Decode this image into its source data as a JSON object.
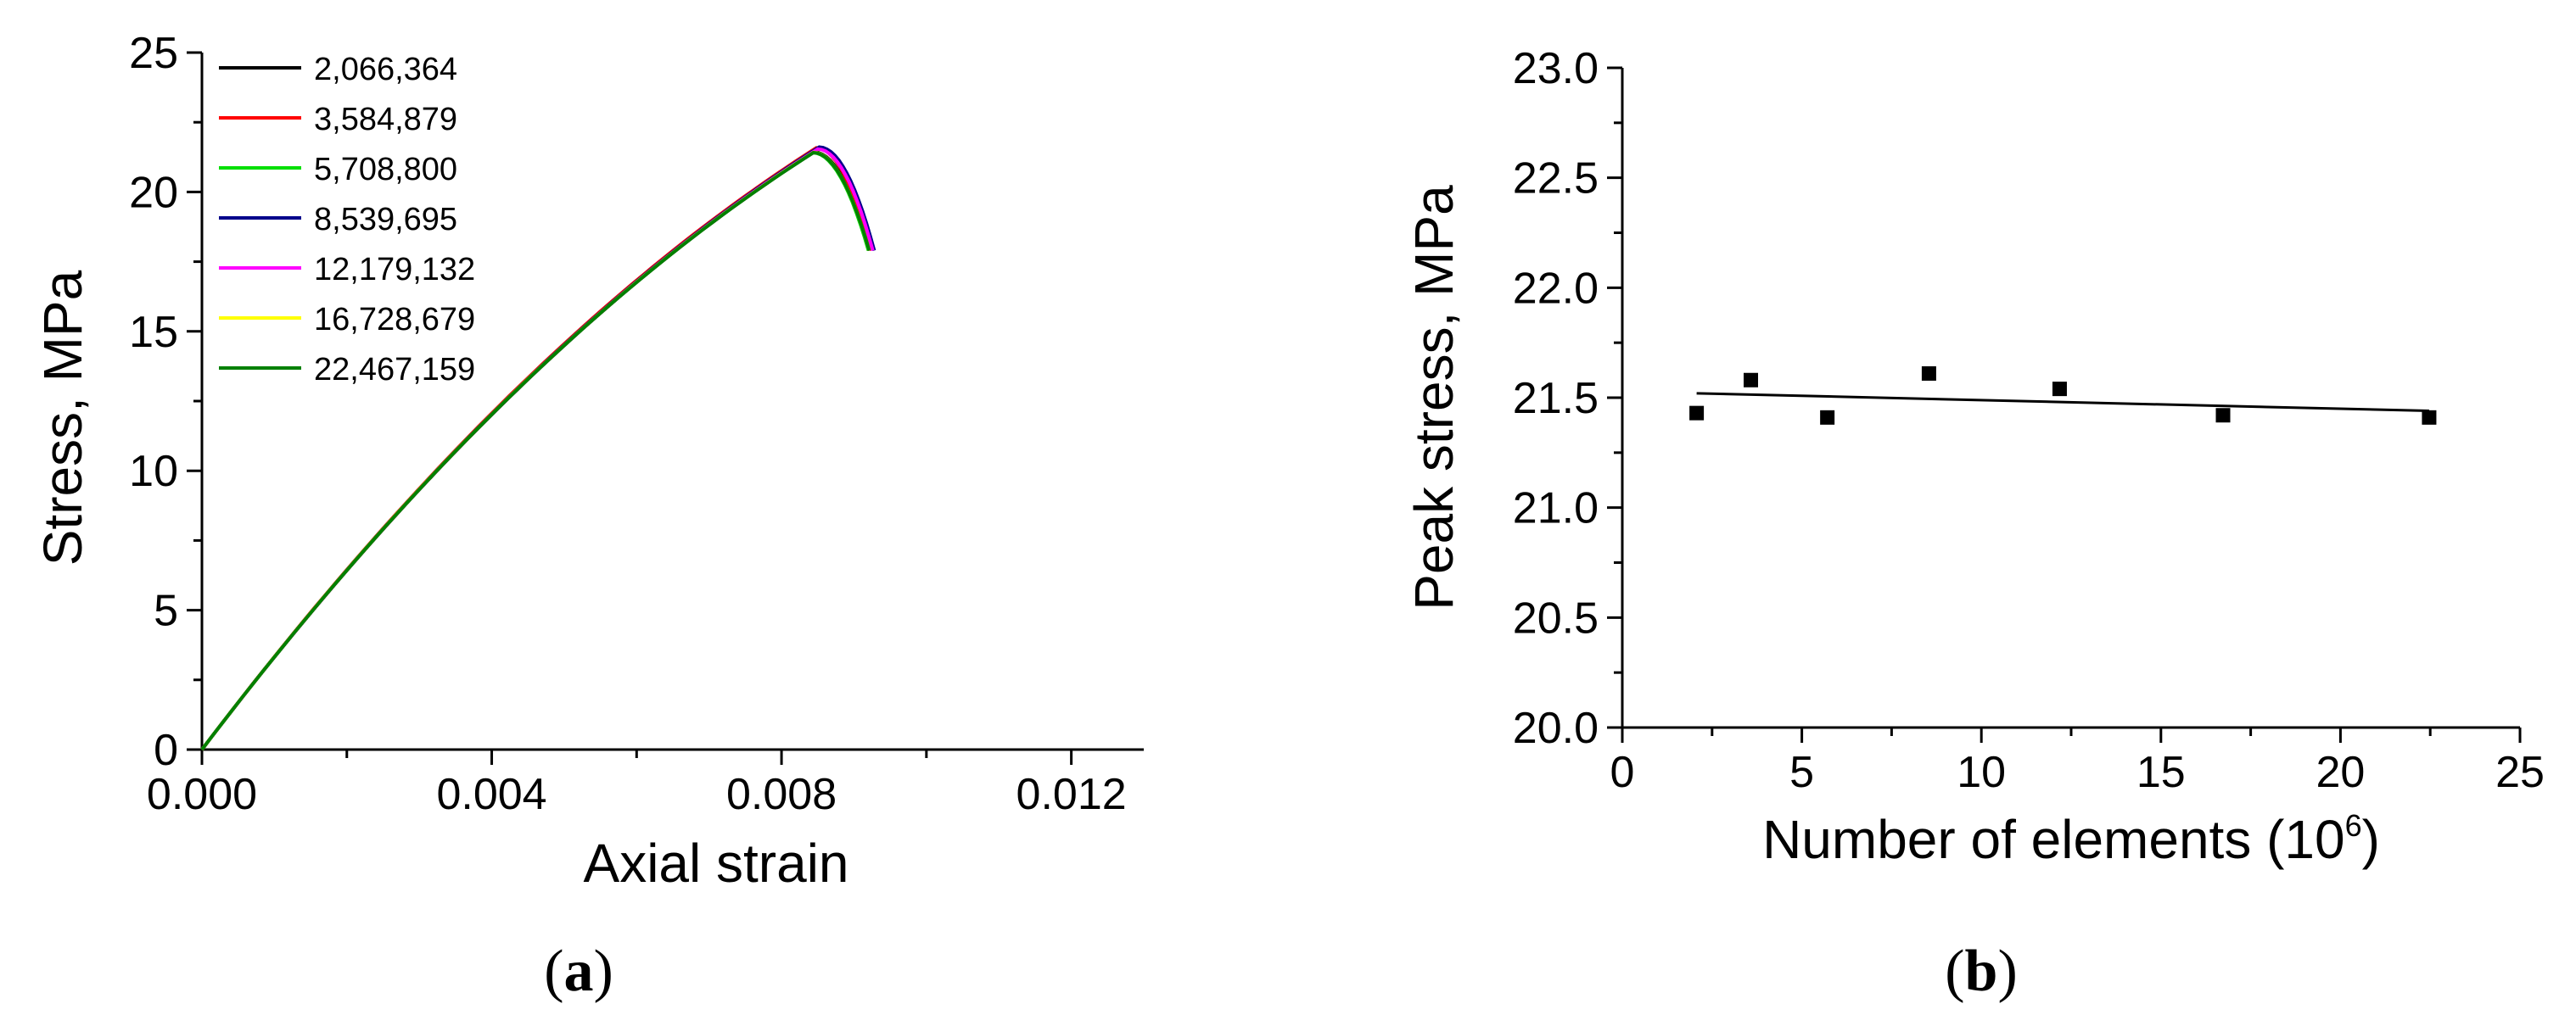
{
  "chart_data": [
    {
      "type": "line",
      "panel_label": "a",
      "xlabel": "Axial strain",
      "ylabel": "Stress, MPa",
      "xlim": [
        0,
        0.013
      ],
      "ylim": [
        0,
        25
      ],
      "xticks": [
        0.0,
        0.004,
        0.008,
        0.012
      ],
      "xtick_labels": [
        "0.000",
        "0.004",
        "0.008",
        "0.012"
      ],
      "yticks": [
        0,
        5,
        10,
        15,
        20,
        25
      ],
      "ytick_labels": [
        "0",
        "5",
        "10",
        "15",
        "20",
        "25"
      ],
      "grid": false,
      "legend_position": "top-left",
      "series": [
        {
          "name": "2,066,364",
          "color": "#000000",
          "peak_x": 0.00845,
          "peak_y": 21.43,
          "end_x": 0.00922,
          "end_y": 17.9
        },
        {
          "name": "3,584,879",
          "color": "#ff0000",
          "peak_x": 0.00848,
          "peak_y": 21.58,
          "end_x": 0.00924,
          "end_y": 17.9
        },
        {
          "name": "5,708,800",
          "color": "#00e000",
          "peak_x": 0.00843,
          "peak_y": 21.41,
          "end_x": 0.0092,
          "end_y": 17.9
        },
        {
          "name": "8,539,695",
          "color": "#00008b",
          "peak_x": 0.00852,
          "peak_y": 21.61,
          "end_x": 0.00928,
          "end_y": 17.9
        },
        {
          "name": "12,179,132",
          "color": "#ff00ff",
          "peak_x": 0.0085,
          "peak_y": 21.54,
          "end_x": 0.00926,
          "end_y": 17.9
        },
        {
          "name": "16,728,679",
          "color": "#ffff00",
          "peak_x": 0.00844,
          "peak_y": 21.42,
          "end_x": 0.00921,
          "end_y": 17.9
        },
        {
          "name": "22,467,159",
          "color": "#008000",
          "peak_x": 0.00844,
          "peak_y": 21.41,
          "end_x": 0.00921,
          "end_y": 17.9
        }
      ]
    },
    {
      "type": "scatter",
      "panel_label": "b",
      "xlabel": "Number of elements (10",
      "xlabel_sup": "6",
      "xlabel_end": ")",
      "ylabel": "Peak stress, MPa",
      "xlim": [
        0,
        25
      ],
      "ylim": [
        20.0,
        23.0
      ],
      "xticks": [
        0,
        5,
        10,
        15,
        20,
        25
      ],
      "xtick_labels": [
        "0",
        "5",
        "10",
        "15",
        "20",
        "25"
      ],
      "yticks": [
        20.0,
        20.5,
        21.0,
        21.5,
        22.0,
        22.5,
        23.0
      ],
      "ytick_labels": [
        "20.0",
        "20.5",
        "21.0",
        "21.5",
        "22.0",
        "22.5",
        "23.0"
      ],
      "grid": false,
      "points": [
        {
          "x": 2.07,
          "y": 21.43
        },
        {
          "x": 3.58,
          "y": 21.58
        },
        {
          "x": 5.71,
          "y": 21.41
        },
        {
          "x": 8.54,
          "y": 21.61
        },
        {
          "x": 12.18,
          "y": 21.54
        },
        {
          "x": 16.73,
          "y": 21.42
        },
        {
          "x": 22.47,
          "y": 21.41
        }
      ],
      "fit_line": {
        "x": [
          2.07,
          22.47
        ],
        "y": [
          21.52,
          21.44
        ]
      }
    }
  ]
}
